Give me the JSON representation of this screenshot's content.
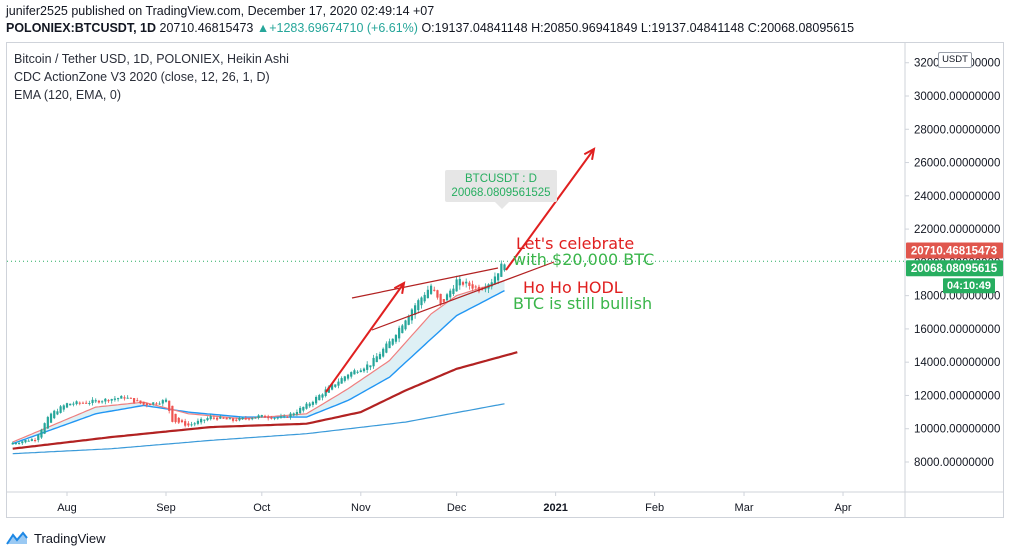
{
  "header": {
    "published": "junifer2525 published on TradingView.com, December 17, 2020 02:49:14 +07",
    "user": "junifer2525",
    "symbol": "POLONIEX:BTCUSDT, 1D",
    "last": "20710.46815473",
    "change": "+1283.69674710 (+6.61%)",
    "ohlc_o": "O:19137.04841148",
    "ohlc_h": "H:20850.96941849",
    "ohlc_l": "L:19137.04841148",
    "ohlc_c": "C:20068.08095615"
  },
  "legend": {
    "title": "Bitcoin / Tether USD, 1D, POLONIEX, Heikin Ashi",
    "indicator1": "CDC ActionZone V3 2020 (close, 12, 26, 1, D)",
    "indicator2": "EMA (120, EMA, 0)"
  },
  "tooltip": {
    "label": "BTCUSDT : D",
    "value": "20068.0809561525"
  },
  "price_axis": {
    "currency": "USDT",
    "last_price_label": "20710.46815473",
    "close_label": "20068.08095615",
    "countdown": "04:10:49"
  },
  "annotations": {
    "celebrate_line1": "Let's celebrate",
    "celebrate_line2": "with $20,000 BTC",
    "hodl": "Ho Ho HODL",
    "bullish": "BTC is still bullish"
  },
  "branding": {
    "logo_text": "TradingView"
  },
  "colors": {
    "up": "#26a69a",
    "down": "#ef5350",
    "fast_ema": "#ef7f7f",
    "slow_ema": "#2196f3",
    "ema120": "#b22222",
    "blue_ma": "#3a9ad9",
    "annotation_red": "#e02020",
    "annotation_green": "#3ab54a",
    "last_label_bg": "#e0564d",
    "close_label_bg": "#27ae60",
    "countdown_bg": "#27ae60"
  },
  "chart_data": {
    "type": "candlestick",
    "title": "Bitcoin / Tether USD, 1D, POLONIEX, Heikin Ashi",
    "y_ticks": [
      8000,
      10000,
      12000,
      14000,
      16000,
      18000,
      20000,
      22000,
      24000,
      26000,
      28000,
      30000,
      32000
    ],
    "y_tick_labels": [
      "8000.00000000",
      "10000.00000000",
      "12000.00000000",
      "14000.00000000",
      "16000.00000000",
      "18000.00000000",
      "20000.00000000",
      "22000.00000000",
      "24000.00000000",
      "26000.00000000",
      "28000.00000000",
      "30000.00000000",
      "32000.00000000"
    ],
    "ylim": [
      4000,
      33000
    ],
    "x_labels": [
      "Aug",
      "Sep",
      "Oct",
      "Nov",
      "Dec",
      "2021",
      "Feb",
      "Mar",
      "Apr"
    ],
    "x_label_dates": [
      "2020-08-01",
      "2020-09-01",
      "2020-10-01",
      "2020-11-01",
      "2020-12-01",
      "2021-01-01",
      "2021-02-01",
      "2021-03-01",
      "2021-04-01"
    ],
    "close_path": [
      [
        "2020-07-15",
        9150
      ],
      [
        "2020-07-22",
        9400
      ],
      [
        "2020-07-27",
        10900
      ],
      [
        "2020-08-01",
        11500
      ],
      [
        "2020-08-08",
        11600
      ],
      [
        "2020-08-15",
        11800
      ],
      [
        "2020-08-19",
        11900
      ],
      [
        "2020-08-25",
        11450
      ],
      [
        "2020-09-01",
        11700
      ],
      [
        "2020-09-03",
        10500
      ],
      [
        "2020-09-08",
        10200
      ],
      [
        "2020-09-15",
        10700
      ],
      [
        "2020-09-22",
        10500
      ],
      [
        "2020-09-30",
        10750
      ],
      [
        "2020-10-08",
        10650
      ],
      [
        "2020-10-15",
        11400
      ],
      [
        "2020-10-21",
        12300
      ],
      [
        "2020-10-28",
        13300
      ],
      [
        "2020-11-04",
        13900
      ],
      [
        "2020-11-10",
        15200
      ],
      [
        "2020-11-17",
        17200
      ],
      [
        "2020-11-23",
        18600
      ],
      [
        "2020-11-26",
        17400
      ],
      [
        "2020-12-01",
        18900
      ],
      [
        "2020-12-08",
        18400
      ],
      [
        "2020-12-12",
        18900
      ],
      [
        "2020-12-16",
        20068
      ]
    ],
    "series": [
      {
        "name": "CDC fast EMA",
        "points": [
          [
            "2020-07-15",
            9200
          ],
          [
            "2020-08-10",
            11300
          ],
          [
            "2020-08-25",
            11600
          ],
          [
            "2020-09-08",
            10900
          ],
          [
            "2020-09-25",
            10600
          ],
          [
            "2020-10-15",
            10900
          ],
          [
            "2020-10-28",
            12400
          ],
          [
            "2020-11-10",
            14100
          ],
          [
            "2020-11-23",
            16900
          ],
          [
            "2020-12-01",
            18000
          ],
          [
            "2020-12-16",
            18900
          ]
        ]
      },
      {
        "name": "CDC slow EMA",
        "points": [
          [
            "2020-07-15",
            9100
          ],
          [
            "2020-08-10",
            10900
          ],
          [
            "2020-08-25",
            11400
          ],
          [
            "2020-09-08",
            11000
          ],
          [
            "2020-09-25",
            10700
          ],
          [
            "2020-10-15",
            10700
          ],
          [
            "2020-10-28",
            11700
          ],
          [
            "2020-11-10",
            13100
          ],
          [
            "2020-11-23",
            15400
          ],
          [
            "2020-12-01",
            16800
          ],
          [
            "2020-12-16",
            18300
          ]
        ]
      },
      {
        "name": "EMA 120",
        "points": [
          [
            "2020-07-15",
            8800
          ],
          [
            "2020-08-15",
            9500
          ],
          [
            "2020-09-15",
            10100
          ],
          [
            "2020-10-15",
            10300
          ],
          [
            "2020-11-01",
            11000
          ],
          [
            "2020-11-15",
            12300
          ],
          [
            "2020-12-01",
            13600
          ],
          [
            "2020-12-20",
            14600
          ]
        ]
      },
      {
        "name": "Blue MA",
        "points": [
          [
            "2020-07-15",
            8500
          ],
          [
            "2020-08-15",
            8800
          ],
          [
            "2020-09-15",
            9300
          ],
          [
            "2020-10-15",
            9700
          ],
          [
            "2020-11-15",
            10400
          ],
          [
            "2020-12-16",
            11500
          ]
        ]
      }
    ],
    "grid": false,
    "last_value": 20068.08095615
  }
}
